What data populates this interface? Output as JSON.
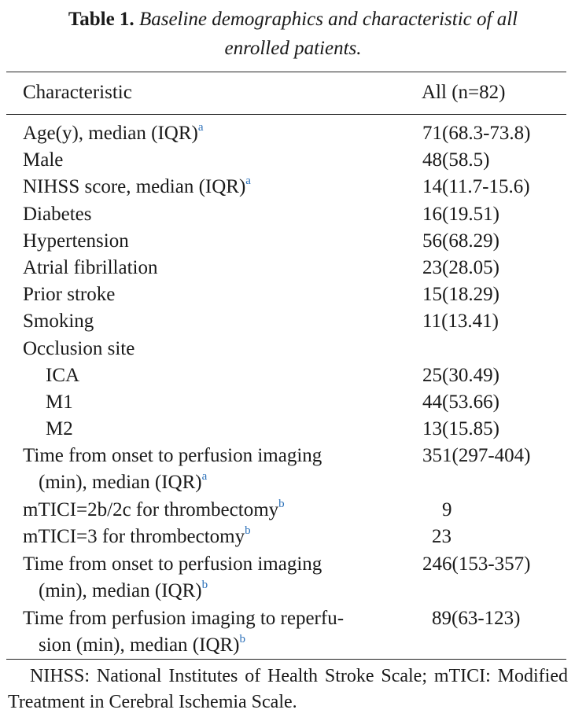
{
  "caption": {
    "label": "Table 1.",
    "title_line1": "Baseline demographics and characteristic of all",
    "title_line2": "enrolled patients."
  },
  "header": {
    "col1": "Characteristic",
    "col2": "All (n=82)"
  },
  "rows": [
    {
      "characteristic": "Age(y), median (IQR)",
      "footnote": "a",
      "value": "71(68.3-73.8)"
    },
    {
      "characteristic": "Male",
      "footnote": "",
      "value": "48(58.5)"
    },
    {
      "characteristic": "NIHSS score, median (IQR)",
      "footnote": "a",
      "value": "14(11.7-15.6)"
    },
    {
      "characteristic": "Diabetes",
      "footnote": "",
      "value": "16(19.51)"
    },
    {
      "characteristic": "Hypertension",
      "footnote": "",
      "value": "56(68.29)"
    },
    {
      "characteristic": "Atrial fibrillation",
      "footnote": "",
      "value": "23(28.05)"
    },
    {
      "characteristic": "Prior stroke",
      "footnote": "",
      "value": "15(18.29)"
    },
    {
      "characteristic": "Smoking",
      "footnote": "",
      "value": "11(13.41)"
    },
    {
      "characteristic": "Occlusion site",
      "footnote": "",
      "value": ""
    },
    {
      "characteristic": "ICA",
      "footnote": "",
      "value": "25(30.49)"
    },
    {
      "characteristic": "M1",
      "footnote": "",
      "value": "44(53.66)"
    },
    {
      "characteristic": "M2",
      "footnote": "",
      "value": "13(15.85)"
    },
    {
      "characteristic": "Time from onset to perfusion imaging",
      "characteristic_cont": "(min), median (IQR)",
      "footnote": "a",
      "value": "351(297-404)"
    },
    {
      "characteristic": "mTICI=2b/2c for thrombectomy",
      "footnote": "b",
      "value": "9"
    },
    {
      "characteristic": "mTICI=3 for thrombectomy",
      "footnote": "b",
      "value": "23"
    },
    {
      "characteristic": "Time from onset to perfusion imaging",
      "characteristic_cont": "(min), median (IQR)",
      "footnote": "b",
      "value": "246(153-357)"
    },
    {
      "characteristic": "Time from perfusion imaging to reperfu-",
      "characteristic_cont": "sion (min), median (IQR)",
      "footnote": "b",
      "value": "89(63-123)"
    }
  ],
  "footnote_text": "NIHSS: National Institutes of Health Stroke Scale; mTICI: Modified Treatment in Cerebral Ischemia Scale."
}
